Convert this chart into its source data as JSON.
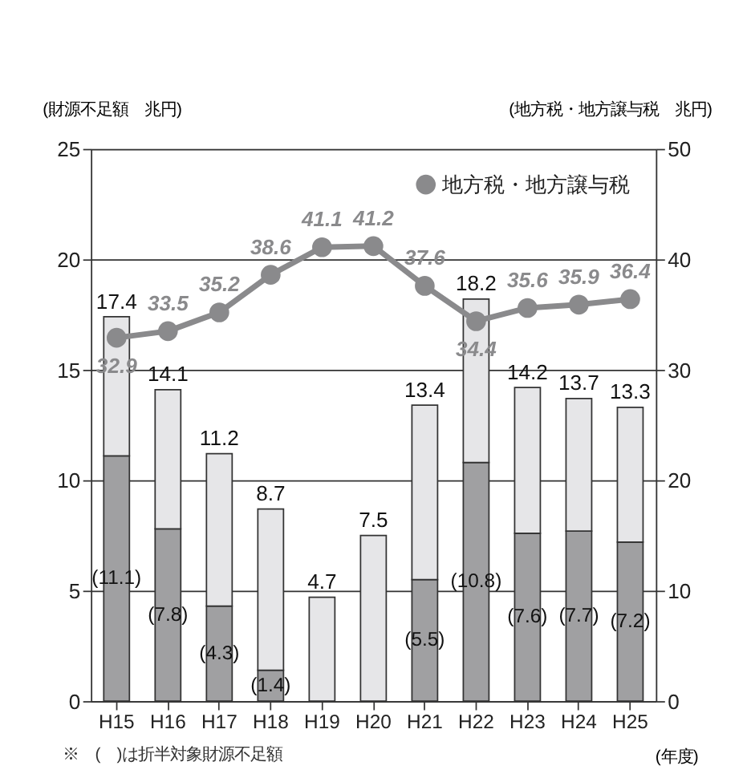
{
  "chart_data": {
    "type": "bar",
    "stacked": true,
    "ylabel": "(財源不足額　兆円)",
    "y2label": "(地方税・地方譲与税　兆円)",
    "xlabel": "(年度)",
    "annotations": [
      "※　(　)は折半対象財源不足額"
    ],
    "categories": [
      "H15",
      "H16",
      "H17",
      "H18",
      "H19",
      "H20",
      "H21",
      "H22",
      "H23",
      "H24",
      "H25"
    ],
    "series": [
      {
        "type": "bar",
        "color": "#a0a0a2",
        "values": [
          11.1,
          7.8,
          4.3,
          1.4,
          0,
          0,
          5.5,
          10.8,
          7.6,
          7.7,
          7.2
        ],
        "value_labels": [
          "(11.1)",
          "(7.8)",
          "(4.3)",
          "(1.4)",
          null,
          null,
          "(5.5)",
          "(10.8)",
          "(7.6)",
          "(7.7)",
          "(7.2)"
        ]
      },
      {
        "type": "bar",
        "color": "#e6e6e8",
        "values": [
          6.3,
          6.3,
          6.9,
          7.3,
          4.7,
          7.5,
          7.9,
          7.4,
          6.6,
          6.0,
          6.1
        ]
      },
      {
        "type": "line",
        "axis": "y2",
        "name": "地方税・地方譲与税",
        "color": "#8a8a8c",
        "marker": "circle",
        "data_labels": true,
        "values": [
          32.9,
          33.5,
          35.2,
          38.6,
          41.1,
          41.2,
          37.6,
          34.4,
          35.6,
          35.9,
          36.4
        ]
      }
    ],
    "totals": [
      "17.4",
      "14.1",
      "11.2",
      "8.7",
      "4.7",
      "7.5",
      "13.4",
      "18.2",
      "14.2",
      "13.7",
      "13.3"
    ],
    "ylim": [
      0,
      25
    ],
    "yticks": [
      0,
      5,
      10,
      15,
      20,
      25
    ],
    "y2lim": [
      0,
      50
    ],
    "y2ticks": [
      0,
      10,
      20,
      30,
      40,
      50
    ],
    "grid": "y",
    "legend": "top right"
  }
}
